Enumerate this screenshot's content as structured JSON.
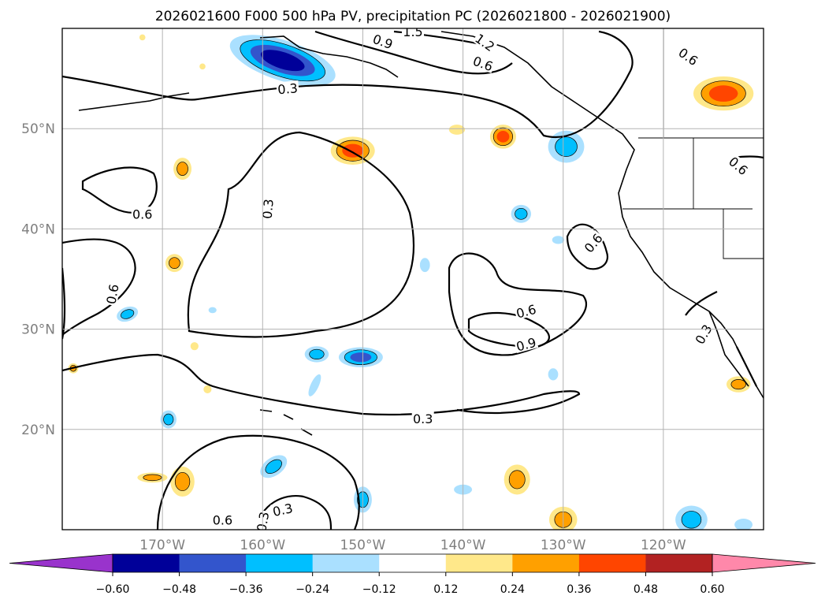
{
  "chart_data": {
    "type": "map-contour",
    "title": "2026021600 F000 500 hPa PV, precipitation PC (2026021800 - 2026021900)",
    "lon_range": [
      -180,
      -110
    ],
    "lat_range": [
      10,
      60
    ],
    "lon_ticks": [
      -170,
      -160,
      -150,
      -140,
      -130,
      -120
    ],
    "lon_tick_labels": [
      "170°W",
      "160°W",
      "150°W",
      "140°W",
      "130°W",
      "120°W"
    ],
    "lat_ticks": [
      20,
      30,
      40,
      50
    ],
    "lat_tick_labels": [
      "20°N",
      "30°N",
      "40°N",
      "50°N"
    ],
    "grid": true,
    "contour_variable": "500 hPa PV",
    "contour_levels": [
      0.3,
      0.6,
      0.9,
      1.2,
      1.5
    ],
    "contour_labels": [
      {
        "text": "0.3",
        "lon": -159.5,
        "lat": 42.0,
        "angle": -85
      },
      {
        "text": "0.3",
        "lon": -157.5,
        "lat": 54.0,
        "angle": -5
      },
      {
        "text": "0.3",
        "lon": -144.0,
        "lat": 21.1,
        "angle": 0
      },
      {
        "text": "0.3",
        "lon": -158.0,
        "lat": 12.0,
        "angle": -12
      },
      {
        "text": "0.3",
        "lon": -160.0,
        "lat": 10.8,
        "angle": -80
      },
      {
        "text": "0.3",
        "lon": -116.0,
        "lat": 29.5,
        "angle": -60
      },
      {
        "text": "0.6",
        "lon": -172.0,
        "lat": 41.5,
        "angle": 0
      },
      {
        "text": "0.6",
        "lon": -175.0,
        "lat": 33.5,
        "angle": -80
      },
      {
        "text": "0.6",
        "lon": -164.0,
        "lat": 11.0,
        "angle": 0
      },
      {
        "text": "0.6",
        "lon": -138.0,
        "lat": 56.5,
        "angle": 20
      },
      {
        "text": "0.6",
        "lon": -133.7,
        "lat": 31.8,
        "angle": -15
      },
      {
        "text": "0.6",
        "lon": -127.0,
        "lat": 38.6,
        "angle": -50
      },
      {
        "text": "0.6",
        "lon": -117.5,
        "lat": 57.2,
        "angle": 35
      },
      {
        "text": "0.6",
        "lon": -112.5,
        "lat": 46.3,
        "angle": 40
      },
      {
        "text": "0.9",
        "lon": -148.0,
        "lat": 58.7,
        "angle": 20
      },
      {
        "text": "0.9",
        "lon": -133.7,
        "lat": 28.5,
        "angle": -15
      },
      {
        "text": "1.2",
        "lon": -137.8,
        "lat": 58.6,
        "angle": 35
      },
      {
        "text": "1.5",
        "lon": -145.0,
        "lat": 59.7,
        "angle": 0
      }
    ],
    "fill_variable": "precipitation PC",
    "colorbar": {
      "levels": [
        -0.6,
        -0.48,
        -0.36,
        -0.24,
        -0.12,
        0.12,
        0.24,
        0.36,
        0.48,
        0.6
      ],
      "tick_labels": [
        "−0.60",
        "−0.48",
        "−0.36",
        "−0.24",
        "−0.12",
        "0.12",
        "0.24",
        "0.36",
        "0.48",
        "0.60"
      ],
      "colors": [
        "#9933cc",
        "#000099",
        "#3355cc",
        "#00bfff",
        "#aae0ff",
        "#ffffff",
        "#ffe88a",
        "#ffa000",
        "#ff4500",
        "#b22222",
        "#ff88aa"
      ],
      "extend": "both",
      "orientation": "horizontal"
    },
    "precip_features": [
      {
        "lon": -158.0,
        "lat": 56.8,
        "rx": 5.5,
        "ry": 2.0,
        "angle": 18,
        "value": -0.55
      },
      {
        "lon": -151.0,
        "lat": 47.8,
        "rx": 2.2,
        "ry": 1.4,
        "angle": 0,
        "value": 0.38
      },
      {
        "lon": -114.0,
        "lat": 53.5,
        "rx": 3.0,
        "ry": 1.7,
        "angle": 0,
        "value": 0.4
      },
      {
        "lon": -136.0,
        "lat": 49.2,
        "rx": 1.3,
        "ry": 1.2,
        "angle": 0,
        "value": 0.36
      },
      {
        "lon": -129.7,
        "lat": 48.2,
        "rx": 1.8,
        "ry": 1.6,
        "angle": 0,
        "value": -0.3
      },
      {
        "lon": -168.0,
        "lat": 46.0,
        "rx": 0.9,
        "ry": 1.1,
        "angle": 0,
        "value": 0.3
      },
      {
        "lon": -168.8,
        "lat": 36.6,
        "rx": 0.9,
        "ry": 0.9,
        "angle": 0,
        "value": 0.3
      },
      {
        "lon": -140.6,
        "lat": 49.9,
        "rx": 0.8,
        "ry": 0.5,
        "angle": 0,
        "value": 0.15
      },
      {
        "lon": -134.2,
        "lat": 41.5,
        "rx": 1.0,
        "ry": 0.9,
        "angle": 0,
        "value": -0.3
      },
      {
        "lon": -130.5,
        "lat": 38.9,
        "rx": 0.6,
        "ry": 0.4,
        "angle": 0,
        "value": -0.2
      },
      {
        "lon": -173.5,
        "lat": 31.5,
        "rx": 1.1,
        "ry": 0.7,
        "angle": -20,
        "value": -0.3
      },
      {
        "lon": -143.8,
        "lat": 36.4,
        "rx": 0.5,
        "ry": 0.7,
        "angle": 0,
        "value": -0.2
      },
      {
        "lon": -150.2,
        "lat": 27.2,
        "rx": 2.2,
        "ry": 1.0,
        "angle": 0,
        "value": -0.36
      },
      {
        "lon": -154.6,
        "lat": 27.5,
        "rx": 1.2,
        "ry": 0.8,
        "angle": 0,
        "value": -0.3
      },
      {
        "lon": -154.8,
        "lat": 24.4,
        "rx": 0.4,
        "ry": 1.2,
        "angle": 25,
        "value": -0.15
      },
      {
        "lon": -131.0,
        "lat": 25.5,
        "rx": 0.5,
        "ry": 0.6,
        "angle": 0,
        "value": -0.2
      },
      {
        "lon": -112.5,
        "lat": 24.5,
        "rx": 1.2,
        "ry": 0.8,
        "angle": 0,
        "value": 0.32
      },
      {
        "lon": -169.4,
        "lat": 21.0,
        "rx": 0.8,
        "ry": 0.9,
        "angle": 0,
        "value": -0.3
      },
      {
        "lon": -165.0,
        "lat": 31.9,
        "rx": 0.4,
        "ry": 0.3,
        "angle": 0,
        "value": -0.15
      },
      {
        "lon": -171.0,
        "lat": 15.2,
        "rx": 1.5,
        "ry": 0.5,
        "angle": 0,
        "value": 0.3
      },
      {
        "lon": -168.0,
        "lat": 14.8,
        "rx": 1.2,
        "ry": 1.5,
        "angle": 0,
        "value": 0.3
      },
      {
        "lon": -158.9,
        "lat": 16.3,
        "rx": 1.5,
        "ry": 0.9,
        "angle": -35,
        "value": -0.3
      },
      {
        "lon": -150.0,
        "lat": 13.0,
        "rx": 0.9,
        "ry": 1.3,
        "angle": 0,
        "value": -0.3
      },
      {
        "lon": -140.0,
        "lat": 14.0,
        "rx": 0.9,
        "ry": 0.5,
        "angle": 0,
        "value": -0.2
      },
      {
        "lon": -134.6,
        "lat": 15.0,
        "rx": 1.3,
        "ry": 1.5,
        "angle": 0,
        "value": 0.34
      },
      {
        "lon": -130.0,
        "lat": 11.0,
        "rx": 1.4,
        "ry": 1.3,
        "angle": 0,
        "value": 0.3
      },
      {
        "lon": -117.2,
        "lat": 11.0,
        "rx": 1.6,
        "ry": 1.4,
        "angle": 0,
        "value": -0.3
      },
      {
        "lon": -112.0,
        "lat": 10.5,
        "rx": 0.9,
        "ry": 0.6,
        "angle": 0,
        "value": -0.15
      },
      {
        "lon": -178.9,
        "lat": 26.1,
        "rx": 0.5,
        "ry": 0.5,
        "angle": 0,
        "value": 0.24
      },
      {
        "lon": -165.5,
        "lat": 24.0,
        "rx": 0.4,
        "ry": 0.4,
        "angle": 0,
        "value": 0.2
      },
      {
        "lon": -166.8,
        "lat": 28.3,
        "rx": 0.4,
        "ry": 0.4,
        "angle": 0,
        "value": 0.2
      },
      {
        "lon": -172.0,
        "lat": 59.1,
        "rx": 0.3,
        "ry": 0.3,
        "angle": 0,
        "value": 0.2
      },
      {
        "lon": -166.0,
        "lat": 56.2,
        "rx": 0.3,
        "ry": 0.3,
        "angle": 0,
        "value": 0.2
      }
    ]
  }
}
